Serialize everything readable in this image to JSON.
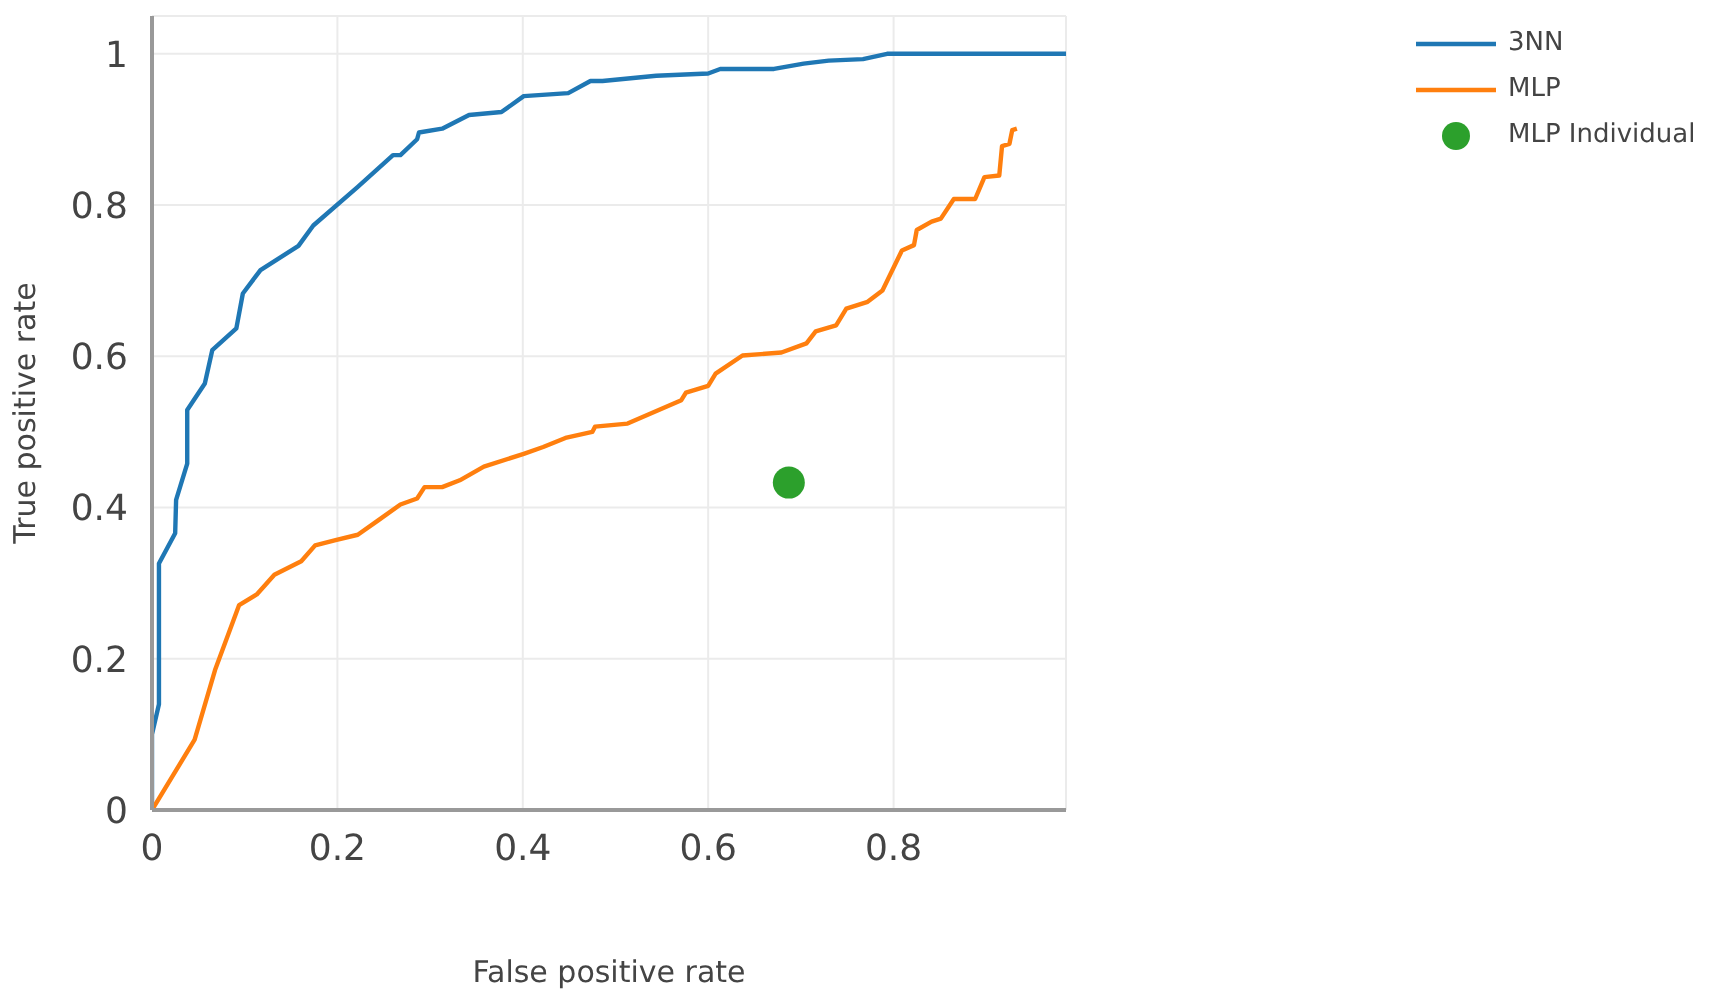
{
  "chart_data": {
    "type": "line",
    "xlabel": "False positive rate",
    "ylabel": "True positive  rate",
    "xlim": [
      0,
      0.986
    ],
    "ylim": [
      0,
      1.05
    ],
    "xticks": [
      0,
      0.2,
      0.4,
      0.6,
      0.8
    ],
    "yticks": [
      0,
      0.2,
      0.4,
      0.6,
      0.8,
      1
    ],
    "grid": true,
    "legend": "top right",
    "series": [
      {
        "name": "3NN",
        "color": "#1f77b4",
        "x": [
          0,
          0,
          0.0075,
          0.0075,
          0.025,
          0.026,
          0.038,
          0.038,
          0.057,
          0.065,
          0.091,
          0.098,
          0.117,
          0.158,
          0.174,
          0.222,
          0.26,
          0.268,
          0.286,
          0.288,
          0.313,
          0.342,
          0.377,
          0.401,
          0.449,
          0.473,
          0.486,
          0.544,
          0.6,
          0.613,
          0.671,
          0.703,
          0.73,
          0.767,
          0.793,
          0.986
        ],
        "values": [
          0,
          0.1,
          0.14,
          0.326,
          0.366,
          0.41,
          0.458,
          0.529,
          0.564,
          0.608,
          0.637,
          0.683,
          0.714,
          0.746,
          0.773,
          0.824,
          0.866,
          0.866,
          0.887,
          0.896,
          0.901,
          0.919,
          0.923,
          0.944,
          0.948,
          0.964,
          0.964,
          0.971,
          0.974,
          0.98,
          0.98,
          0.987,
          0.991,
          0.993,
          1,
          1
        ]
      },
      {
        "name": "MLP",
        "color": "#ff7f0e",
        "x": [
          0,
          0.046,
          0.068,
          0.094,
          0.113,
          0.132,
          0.161,
          0.176,
          0.198,
          0.222,
          0.244,
          0.268,
          0.286,
          0.294,
          0.313,
          0.332,
          0.358,
          0.401,
          0.422,
          0.446,
          0.475,
          0.478,
          0.513,
          0.571,
          0.576,
          0.6,
          0.608,
          0.637,
          0.679,
          0.706,
          0.716,
          0.738,
          0.749,
          0.772,
          0.788,
          0.809,
          0.822,
          0.825,
          0.841,
          0.851,
          0.865,
          0.888,
          0.898,
          0.914,
          0.917,
          0.925,
          0.928,
          0.933
        ],
        "values": [
          0,
          0.093,
          0.185,
          0.271,
          0.285,
          0.311,
          0.329,
          0.35,
          0.357,
          0.364,
          0.383,
          0.404,
          0.412,
          0.427,
          0.427,
          0.436,
          0.454,
          0.471,
          0.48,
          0.492,
          0.5,
          0.507,
          0.511,
          0.542,
          0.552,
          0.561,
          0.577,
          0.601,
          0.605,
          0.617,
          0.633,
          0.641,
          0.663,
          0.672,
          0.687,
          0.74,
          0.747,
          0.767,
          0.778,
          0.782,
          0.808,
          0.808,
          0.837,
          0.839,
          0.878,
          0.881,
          0.899,
          0.901
        ]
      },
      {
        "name": "MLP Individual",
        "color": "#2ca02c",
        "type": "scatter",
        "x": [
          0.687
        ],
        "values": [
          0.433
        ]
      }
    ]
  }
}
